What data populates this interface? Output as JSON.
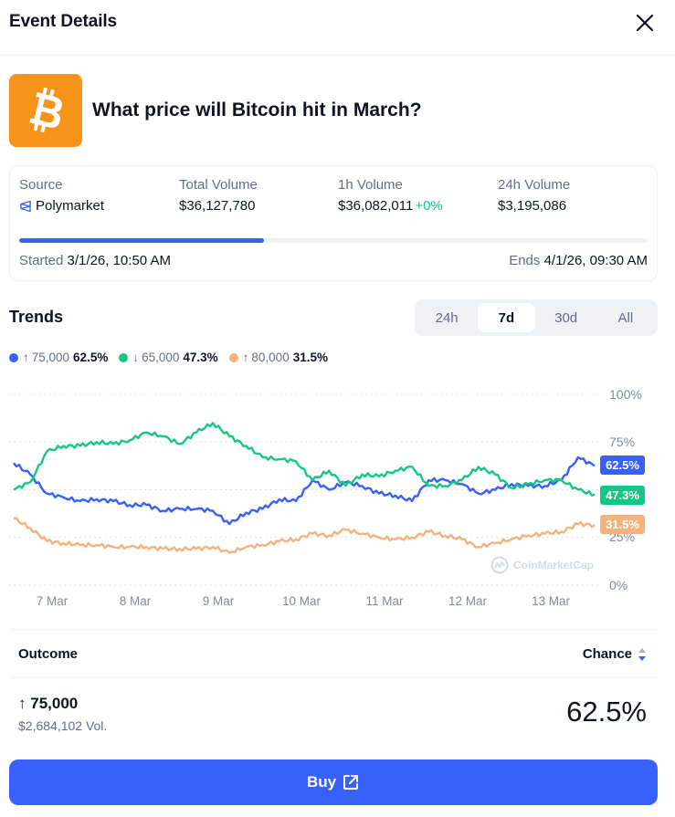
{
  "header": {
    "title": "Event Details",
    "close_icon": "close-icon"
  },
  "event": {
    "icon": "bitcoin-icon",
    "icon_color": "#f7931a",
    "title": "What price will Bitcoin hit in March?"
  },
  "stats": {
    "source": {
      "label": "Source",
      "value": "Polymarket",
      "icon": "polymarket-icon"
    },
    "total_volume": {
      "label": "Total Volume",
      "value": "$36,127,780"
    },
    "volume_1h": {
      "label": "1h Volume",
      "value": "$36,082,011",
      "change": "+0%"
    },
    "volume_24h": {
      "label": "24h Volume",
      "value": "$3,195,086"
    },
    "progress_percent": 39,
    "started": {
      "label": "Started",
      "value": "3/1/26, 10:50 AM"
    },
    "ends": {
      "label": "Ends",
      "value": "4/1/26, 09:30 AM"
    }
  },
  "trends": {
    "title": "Trends",
    "tabs": [
      {
        "label": "24h",
        "active": false
      },
      {
        "label": "7d",
        "active": true
      },
      {
        "label": "30d",
        "active": false
      },
      {
        "label": "All",
        "active": false
      }
    ],
    "legend": [
      {
        "arrow": "↑",
        "label": "75,000",
        "value": "62.5%",
        "color": "#3861fb"
      },
      {
        "arrow": "↓",
        "label": "65,000",
        "value": "47.3%",
        "color": "#16c784"
      },
      {
        "arrow": "↑",
        "label": "80,000",
        "value": "31.5%",
        "color": "#f4b27c"
      }
    ],
    "watermark": "CoinMarketCap"
  },
  "chart_data": {
    "type": "line",
    "title": "Trends",
    "xlabel": "",
    "ylabel": "",
    "ylim": [
      0,
      100
    ],
    "y_ticks": [
      "100%",
      "75%",
      "50%",
      "25%",
      "0%"
    ],
    "x_ticks": [
      "7 Mar",
      "8 Mar",
      "9 Mar",
      "10 Mar",
      "11 Mar",
      "12 Mar",
      "13 Mar"
    ],
    "grid": true,
    "legend_position": "top-left",
    "x": [
      6.6,
      6.8,
      7.0,
      7.2,
      7.4,
      7.6,
      7.8,
      8.0,
      8.2,
      8.4,
      8.6,
      8.8,
      9.0,
      9.2,
      9.4,
      9.6,
      9.8,
      10.0,
      10.2,
      10.4,
      10.6,
      10.8,
      11.0,
      11.2,
      11.4,
      11.6,
      11.8,
      12.0,
      12.2,
      12.4,
      12.6,
      12.8,
      13.0,
      13.2,
      13.4,
      13.6
    ],
    "series": [
      {
        "name": "↑ 75,000",
        "color": "#3861fb",
        "last": "62.5%",
        "values": [
          64,
          58,
          48,
          46,
          44,
          45,
          44,
          42,
          42,
          39,
          40,
          40,
          39,
          32,
          38,
          40,
          45,
          44,
          55,
          50,
          54,
          52,
          48,
          47,
          44,
          55,
          55,
          53,
          48,
          50,
          53,
          52,
          52,
          55,
          67,
          62.5
        ]
      },
      {
        "name": "↓ 65,000",
        "color": "#16c784",
        "last": "47.3%",
        "values": [
          50,
          54,
          70,
          73,
          73,
          75,
          74,
          76,
          80,
          78,
          74,
          80,
          85,
          78,
          73,
          67,
          66,
          65,
          55,
          60,
          52,
          58,
          57,
          60,
          62,
          52,
          52,
          55,
          62,
          58,
          51,
          53,
          55,
          55,
          50,
          47.3
        ]
      },
      {
        "name": "↑ 80,000",
        "color": "#f4b27c",
        "last": "31.5%",
        "values": [
          35,
          30,
          23,
          22,
          21,
          21,
          20,
          20,
          20,
          19,
          19,
          19,
          20,
          17,
          20,
          21,
          23,
          24,
          27,
          26,
          29,
          27,
          25,
          24,
          25,
          28,
          26,
          24,
          20,
          22,
          24,
          26,
          27,
          28,
          32,
          31.5
        ]
      }
    ]
  },
  "outcomes": {
    "header_outcome": "Outcome",
    "header_chance": "Chance",
    "rows": [
      {
        "arrow": "↑",
        "label": "75,000",
        "volume": "$2,684,102 Vol.",
        "chance": "62.5%"
      }
    ]
  },
  "buy": {
    "label": "Buy",
    "icon": "external-link-icon"
  }
}
